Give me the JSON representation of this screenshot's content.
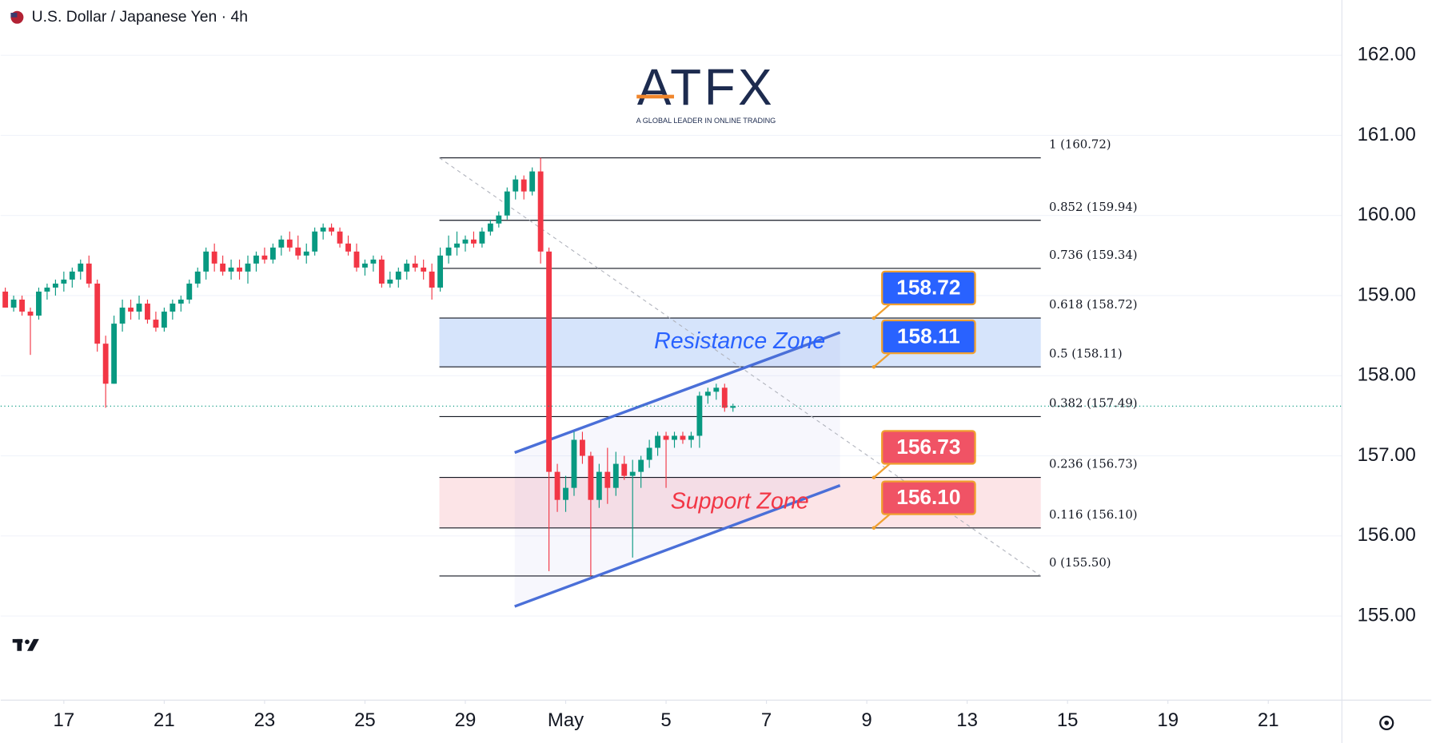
{
  "header": {
    "title": "U.S. Dollar / Japanese Yen · 4h"
  },
  "logo": {
    "name": "ATFX",
    "tagline": "A GLOBAL LEADER IN ONLINE TRADING"
  },
  "chart_data": {
    "type": "candlestick",
    "up_color": "#089981",
    "down_color": "#f23645",
    "xlim": [
      -0.55,
      159.8
    ],
    "ylim": [
      153.95,
      162.69
    ],
    "grid": true,
    "xticks": [
      {
        "value": 7,
        "label": "17"
      },
      {
        "value": 19,
        "label": "21"
      },
      {
        "value": 31,
        "label": "23"
      },
      {
        "value": 43,
        "label": "25"
      },
      {
        "value": 55,
        "label": "29"
      },
      {
        "value": 67,
        "label": "May"
      },
      {
        "value": 79,
        "label": "5"
      },
      {
        "value": 91,
        "label": "7"
      },
      {
        "value": 103,
        "label": "9"
      },
      {
        "value": 115,
        "label": "13"
      },
      {
        "value": 127,
        "label": "15"
      },
      {
        "value": 139,
        "label": "19"
      },
      {
        "value": 151,
        "label": "21"
      }
    ],
    "yticks": [
      {
        "value": 155,
        "label": "155.00"
      },
      {
        "value": 156,
        "label": "156.00"
      },
      {
        "value": 157,
        "label": "157.00"
      },
      {
        "value": 158,
        "label": "158.00"
      },
      {
        "value": 159,
        "label": "159.00"
      },
      {
        "value": 160,
        "label": "160.00"
      },
      {
        "value": 161,
        "label": "161.00"
      },
      {
        "value": 162,
        "label": "162.00"
      }
    ],
    "candles": {
      "x": [
        0,
        1,
        2,
        3,
        4,
        5,
        6,
        7,
        8,
        9,
        10,
        11,
        12,
        13,
        14,
        15,
        16,
        17,
        18,
        19,
        20,
        21,
        22,
        23,
        24,
        25,
        26,
        27,
        28,
        29,
        30,
        31,
        32,
        33,
        34,
        35,
        36,
        37,
        38,
        39,
        40,
        41,
        42,
        43,
        44,
        45,
        46,
        47,
        48,
        49,
        50,
        51,
        52,
        53,
        54,
        55,
        56,
        57,
        58,
        59,
        60,
        61,
        62,
        63,
        64,
        65,
        66,
        67,
        68,
        69,
        70,
        71,
        72,
        73,
        74,
        75,
        76,
        77,
        78,
        79,
        80,
        81,
        82,
        83,
        84,
        85,
        86,
        87
      ],
      "open": [
        159.05,
        158.85,
        158.95,
        158.8,
        158.75,
        159.05,
        159.1,
        159.15,
        159.2,
        159.3,
        159.4,
        159.15,
        158.4,
        157.9,
        158.65,
        158.85,
        158.8,
        158.9,
        158.7,
        158.6,
        158.8,
        158.9,
        158.95,
        159.15,
        159.3,
        159.55,
        159.4,
        159.3,
        159.35,
        159.3,
        159.4,
        159.5,
        159.45,
        159.6,
        159.7,
        159.6,
        159.5,
        159.55,
        159.8,
        159.85,
        159.8,
        159.65,
        159.55,
        159.35,
        159.4,
        159.45,
        159.15,
        159.2,
        159.3,
        159.4,
        159.35,
        159.3,
        159.1,
        159.5,
        159.6,
        159.65,
        159.7,
        159.65,
        159.8,
        159.9,
        160.0,
        160.3,
        160.45,
        160.3,
        160.55,
        159.55,
        156.8,
        156.45,
        156.6,
        157.2,
        157.0,
        156.45,
        156.8,
        156.6,
        156.9,
        156.75,
        156.8,
        156.95,
        157.1,
        157.25,
        157.2,
        157.25,
        157.2,
        157.25,
        157.75,
        157.8,
        157.85,
        157.6
      ],
      "high": [
        159.1,
        159.0,
        159.0,
        158.85,
        159.1,
        159.15,
        159.2,
        159.3,
        159.35,
        159.45,
        159.5,
        159.2,
        158.5,
        158.75,
        158.95,
        158.95,
        159.0,
        158.95,
        158.8,
        158.85,
        158.95,
        159.0,
        159.2,
        159.35,
        159.6,
        159.65,
        159.5,
        159.45,
        159.45,
        159.5,
        159.55,
        159.6,
        159.65,
        159.75,
        159.8,
        159.75,
        159.65,
        159.85,
        159.9,
        159.9,
        159.85,
        159.75,
        159.65,
        159.45,
        159.5,
        159.5,
        159.3,
        159.35,
        159.45,
        159.5,
        159.45,
        159.4,
        159.6,
        159.75,
        159.8,
        159.75,
        159.8,
        159.85,
        159.95,
        160.05,
        160.35,
        160.5,
        160.5,
        160.6,
        160.72,
        159.6,
        156.9,
        156.75,
        157.3,
        157.3,
        157.05,
        156.9,
        157.1,
        157.05,
        157.0,
        156.95,
        157.0,
        157.2,
        157.3,
        157.3,
        157.3,
        157.3,
        157.3,
        157.8,
        157.85,
        157.9,
        157.9,
        157.65
      ],
      "low": [
        158.85,
        158.8,
        158.75,
        158.26,
        158.7,
        158.95,
        159.0,
        159.05,
        159.1,
        159.2,
        159.1,
        158.3,
        157.6,
        157.9,
        158.55,
        158.7,
        158.7,
        158.65,
        158.55,
        158.55,
        158.7,
        158.8,
        158.9,
        159.1,
        159.2,
        159.3,
        159.25,
        159.2,
        159.2,
        159.15,
        159.3,
        159.4,
        159.4,
        159.5,
        159.55,
        159.45,
        159.4,
        159.5,
        159.7,
        159.75,
        159.6,
        159.5,
        159.3,
        159.25,
        159.3,
        159.1,
        159.1,
        159.1,
        159.2,
        159.3,
        159.2,
        158.95,
        159.05,
        159.4,
        159.5,
        159.55,
        159.6,
        159.6,
        159.75,
        159.85,
        159.95,
        160.2,
        160.2,
        160.25,
        159.4,
        155.56,
        156.3,
        156.3,
        156.5,
        156.9,
        155.5,
        156.35,
        156.4,
        156.5,
        156.7,
        155.73,
        156.6,
        156.85,
        157.0,
        156.6,
        157.1,
        157.15,
        157.1,
        157.1,
        157.65,
        157.7,
        157.55,
        157.55
      ],
      "close": [
        158.85,
        158.95,
        158.8,
        158.75,
        159.05,
        159.1,
        159.15,
        159.2,
        159.3,
        159.4,
        159.15,
        158.4,
        157.9,
        158.65,
        158.85,
        158.8,
        158.9,
        158.7,
        158.6,
        158.8,
        158.9,
        158.95,
        159.15,
        159.3,
        159.55,
        159.4,
        159.3,
        159.35,
        159.3,
        159.4,
        159.5,
        159.45,
        159.6,
        159.7,
        159.6,
        159.5,
        159.55,
        159.8,
        159.85,
        159.8,
        159.65,
        159.55,
        159.35,
        159.4,
        159.45,
        159.15,
        159.2,
        159.3,
        159.4,
        159.35,
        159.3,
        159.1,
        159.5,
        159.6,
        159.65,
        159.7,
        159.65,
        159.8,
        159.9,
        160.0,
        160.3,
        160.45,
        160.3,
        160.55,
        159.55,
        156.8,
        156.45,
        156.6,
        157.2,
        157.0,
        156.45,
        156.8,
        156.6,
        156.9,
        156.75,
        156.8,
        156.95,
        157.1,
        157.25,
        157.2,
        157.25,
        157.2,
        157.25,
        157.75,
        157.8,
        157.85,
        157.6,
        157.62
      ]
    },
    "fib": {
      "x": [
        51.9,
        123.8
      ],
      "levels": [
        {
          "value": 160.72,
          "label": "1 (160.72)"
        },
        {
          "value": 159.94,
          "label": "0.852 (159.94)"
        },
        {
          "value": 159.34,
          "label": "0.736 (159.34)"
        },
        {
          "value": 158.72,
          "label": "0.618 (158.72)"
        },
        {
          "value": 158.11,
          "label": "0.5 (158.11)"
        },
        {
          "value": 157.49,
          "label": "0.382 (157.49)"
        },
        {
          "value": 156.73,
          "label": "0.236 (156.73)"
        },
        {
          "value": 156.1,
          "label": "0.116 (156.10)"
        },
        {
          "value": 155.5,
          "label": "0 (155.50)"
        }
      ]
    },
    "zones": [
      {
        "name": "Resistance Zone",
        "low": 158.11,
        "high": 158.72,
        "color": "#2962ff",
        "fill": "#d6e4fb"
      },
      {
        "name": "Support Zone",
        "low": 156.1,
        "high": 156.73,
        "color": "#f23645",
        "fill": "#fce4e7"
      }
    ],
    "channel": {
      "color": "#4a6fd8",
      "upper": {
        "x": [
          60.9,
          99.8
        ],
        "y": [
          157.04,
          158.54
        ]
      },
      "lower": {
        "x": [
          60.9,
          99.8
        ],
        "y": [
          155.12,
          156.63
        ]
      }
    },
    "price_labels": [
      {
        "value": 158.72,
        "color": "#2962ff"
      },
      {
        "value": 158.11,
        "color": "#2962ff"
      },
      {
        "value": 156.73,
        "color": "#f05365"
      },
      {
        "value": 156.1,
        "label": "156.10",
        "color": "#f05365"
      }
    ]
  }
}
